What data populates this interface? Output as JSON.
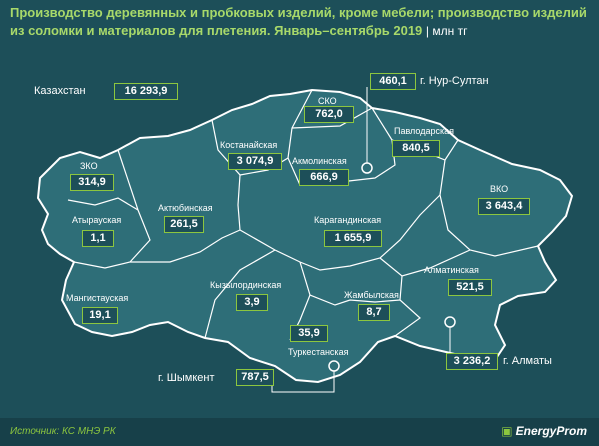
{
  "header": {
    "title": "Производство деревянных и пробковых изделий, кроме мебели; производство изделий из соломки и материалов для плетения. Январь–сентябрь 2019",
    "unit": "| млн тг"
  },
  "total": {
    "label": "Казахстан",
    "value": "16 293,9"
  },
  "regions": [
    {
      "id": "sko",
      "label": "СКО",
      "value": "762,0"
    },
    {
      "id": "pavlodar",
      "label": "Павлодарская",
      "value": "840,5"
    },
    {
      "id": "kostanay",
      "label": "Костанайская",
      "value": "3 074,9"
    },
    {
      "id": "akmola",
      "label": "Акмолинская",
      "value": "666,9"
    },
    {
      "id": "zko",
      "label": "ЗКО",
      "value": "314,9"
    },
    {
      "id": "vko",
      "label": "ВКО",
      "value": "3 643,4"
    },
    {
      "id": "aktobe",
      "label": "Актюбинская",
      "value": "261,5"
    },
    {
      "id": "atyrau",
      "label": "Атырауская",
      "value": "1,1"
    },
    {
      "id": "karaganda",
      "label": "Карагандинская",
      "value": "1 655,9"
    },
    {
      "id": "almaty_obl",
      "label": "Алматинская",
      "value": "521,5"
    },
    {
      "id": "kyzylorda",
      "label": "Кызылординская",
      "value": "3,9"
    },
    {
      "id": "zhambyl",
      "label": "Жамбылская",
      "value": "8,7"
    },
    {
      "id": "mangystau",
      "label": "Мангистауская",
      "value": "19,1"
    },
    {
      "id": "turkestan",
      "label": "Туркестанская",
      "value": "35,9"
    }
  ],
  "cities": [
    {
      "id": "nursultan",
      "label": "г. Нур-Султан",
      "value": "460,1"
    },
    {
      "id": "almaty",
      "label": "г. Алматы",
      "value": "3 236,2"
    },
    {
      "id": "shymkent",
      "label": "г. Шымкент",
      "value": "787,5"
    }
  ],
  "footer": {
    "source": "Источник: КС МНЭ РК",
    "logo": "EnergyProm"
  },
  "colors": {
    "background": "#1d4f59",
    "map_fill": "#2e6e78",
    "accent": "#8cc63f",
    "title": "#a8d96a"
  }
}
